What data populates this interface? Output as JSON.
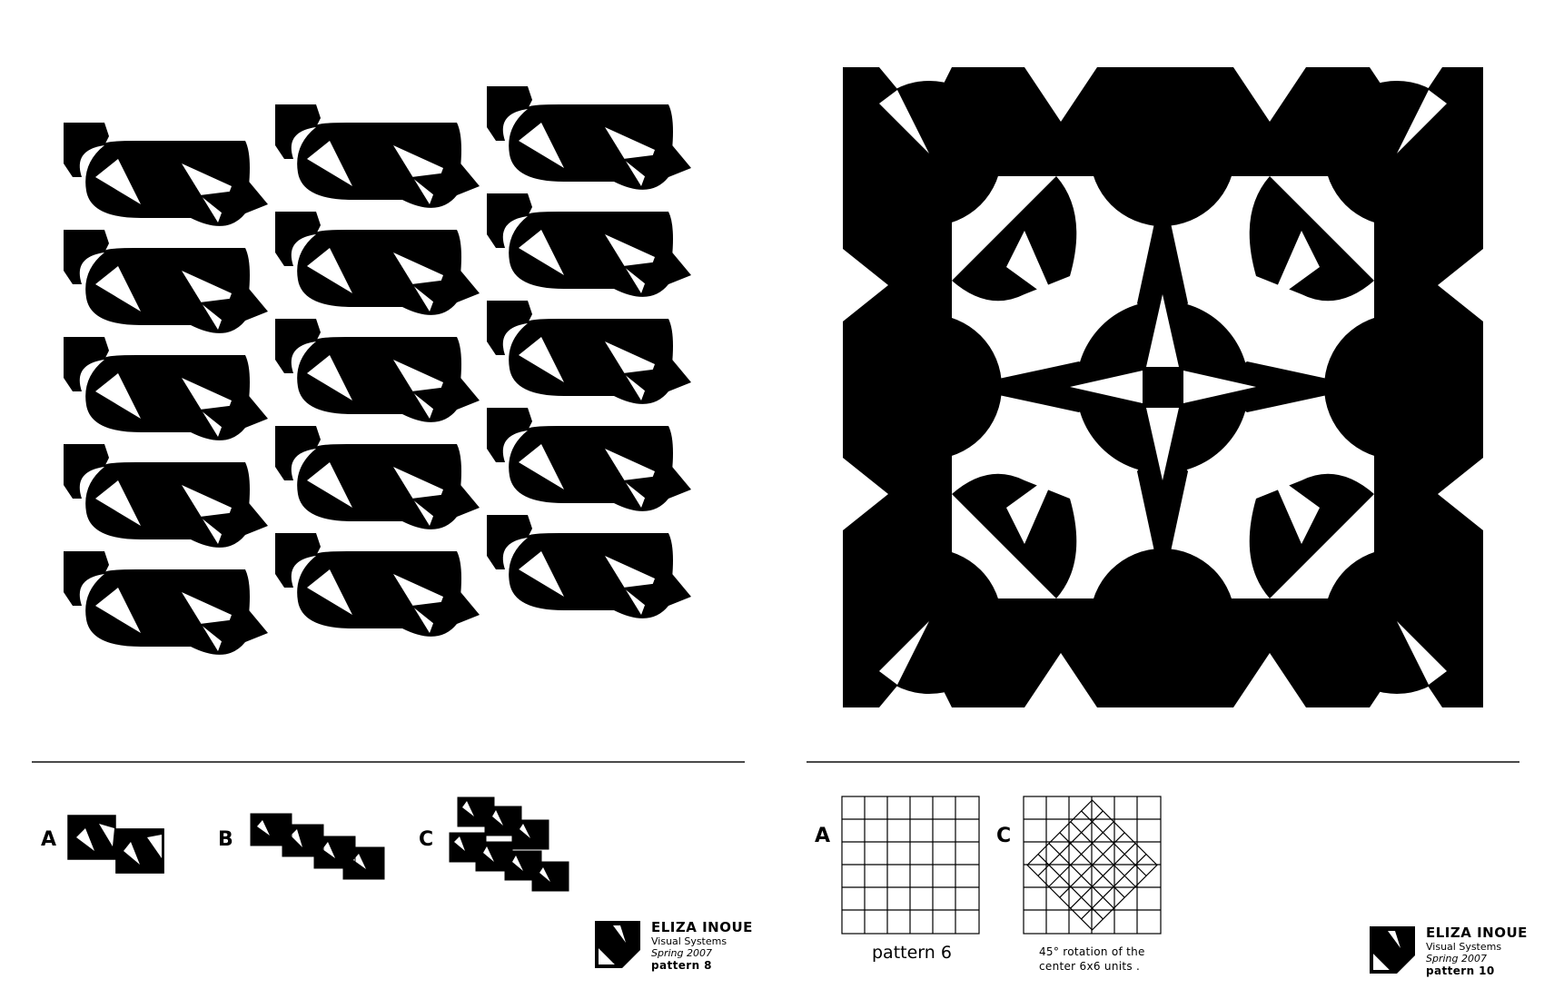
{
  "left_panel": {
    "labels": {
      "a": "A",
      "b": "B",
      "c": "C"
    },
    "credit": {
      "name": "ELIZA INOUE",
      "course": "Visual Systems",
      "term": "Spring 2007",
      "pattern": "pattern 8"
    }
  },
  "right_panel": {
    "labels": {
      "a": "A",
      "c": "C"
    },
    "grid_caption": "pattern 6",
    "rotation_note_line1": "45° rotation of the",
    "rotation_note_line2": "center 6x6 units .",
    "credit": {
      "name": "ELIZA INOUE",
      "course": "Visual Systems",
      "term": "Spring 2007",
      "pattern": "pattern 10"
    }
  }
}
